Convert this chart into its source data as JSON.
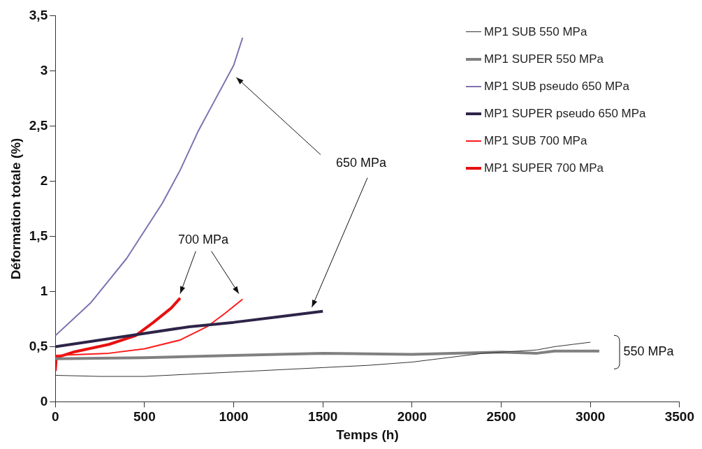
{
  "chart_data": {
    "type": "line",
    "xlabel": "Temps (h)",
    "ylabel": "Déformation totale (%)",
    "xlim": [
      0,
      3500
    ],
    "xticks": [
      0,
      500,
      1000,
      1500,
      2000,
      2500,
      3000,
      3500
    ],
    "ylim": [
      0,
      3.5
    ],
    "yticks": [
      0,
      {
        "value": 0.5,
        "label": "0,5"
      },
      1,
      {
        "value": 1.5,
        "label": "1,5"
      },
      2,
      {
        "value": 2.5,
        "label": "2,5"
      },
      3,
      {
        "value": 3.5,
        "label": "3,5"
      }
    ],
    "legend": "top right",
    "marker": "none",
    "series": [
      {
        "name": "MP1 SUB 550 MPa",
        "color": "#333333",
        "x": [
          0,
          250,
          500,
          750,
          1000,
          1250,
          1500,
          1750,
          2000,
          2200,
          2400,
          2500,
          2700,
          2800,
          2900,
          3000
        ],
        "values": [
          0.24,
          0.23,
          0.23,
          0.25,
          0.27,
          0.29,
          0.31,
          0.33,
          0.36,
          0.4,
          0.44,
          0.45,
          0.47,
          0.5,
          0.52,
          0.54
        ]
      },
      {
        "name": "MP1 SUPER 550 MPa",
        "color": "#808080",
        "x": [
          0,
          500,
          1000,
          1500,
          2000,
          2500,
          2700,
          2800,
          3050
        ],
        "values": [
          0.39,
          0.4,
          0.42,
          0.44,
          0.43,
          0.45,
          0.44,
          0.46,
          0.46
        ]
      },
      {
        "name": "MP1 SUB pseudo 650 MPa",
        "color": "#8070b0",
        "x": [
          0,
          100,
          200,
          300,
          400,
          500,
          600,
          700,
          800,
          900,
          1000,
          1050
        ],
        "values": [
          0.6,
          0.75,
          0.9,
          1.1,
          1.3,
          1.55,
          1.8,
          2.1,
          2.45,
          2.75,
          3.05,
          3.3
        ]
      },
      {
        "name": "MP1 SUPER pseudo 650 MPa",
        "color": "#2e2448",
        "x": [
          0,
          250,
          500,
          750,
          1000,
          1250,
          1500
        ],
        "values": [
          0.5,
          0.56,
          0.62,
          0.68,
          0.72,
          0.77,
          0.82
        ]
      },
      {
        "name": "MP1 SUB 700 MPa",
        "color": "#ff1a1a",
        "x": [
          0,
          300,
          500,
          700,
          850,
          950,
          1050
        ],
        "values": [
          0.42,
          0.44,
          0.48,
          0.56,
          0.68,
          0.8,
          0.93
        ]
      },
      {
        "name": "MP1 SUPER 700 MPa",
        "color": "#e81010",
        "x": [
          0,
          5,
          100,
          300,
          450,
          550,
          650,
          700
        ],
        "values": [
          0.28,
          0.4,
          0.45,
          0.52,
          0.6,
          0.72,
          0.85,
          0.94
        ]
      }
    ],
    "annotations": [
      "650 MPa",
      "700 MPa",
      "550 MPa"
    ]
  }
}
